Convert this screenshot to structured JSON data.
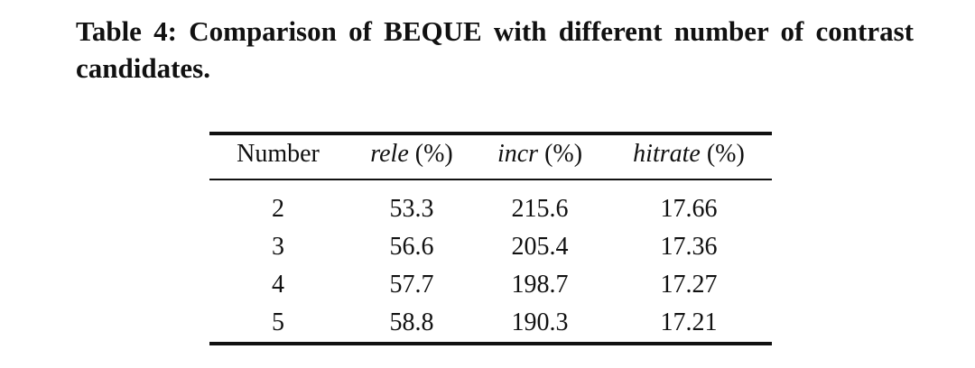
{
  "caption": "Table 4: Comparison of BEQUE with different number of contrast candidates.",
  "table": {
    "header": [
      {
        "name": "Number"
      },
      {
        "name": "rele",
        "unit": "(%)"
      },
      {
        "name": "incr",
        "unit": "(%)"
      },
      {
        "name": "hitrate",
        "unit": "(%)"
      }
    ],
    "rows": [
      [
        2,
        53.3,
        215.6,
        17.66
      ],
      [
        3,
        56.6,
        205.4,
        17.36
      ],
      [
        4,
        57.7,
        198.7,
        17.27
      ],
      [
        5,
        58.8,
        190.3,
        17.21
      ]
    ]
  }
}
